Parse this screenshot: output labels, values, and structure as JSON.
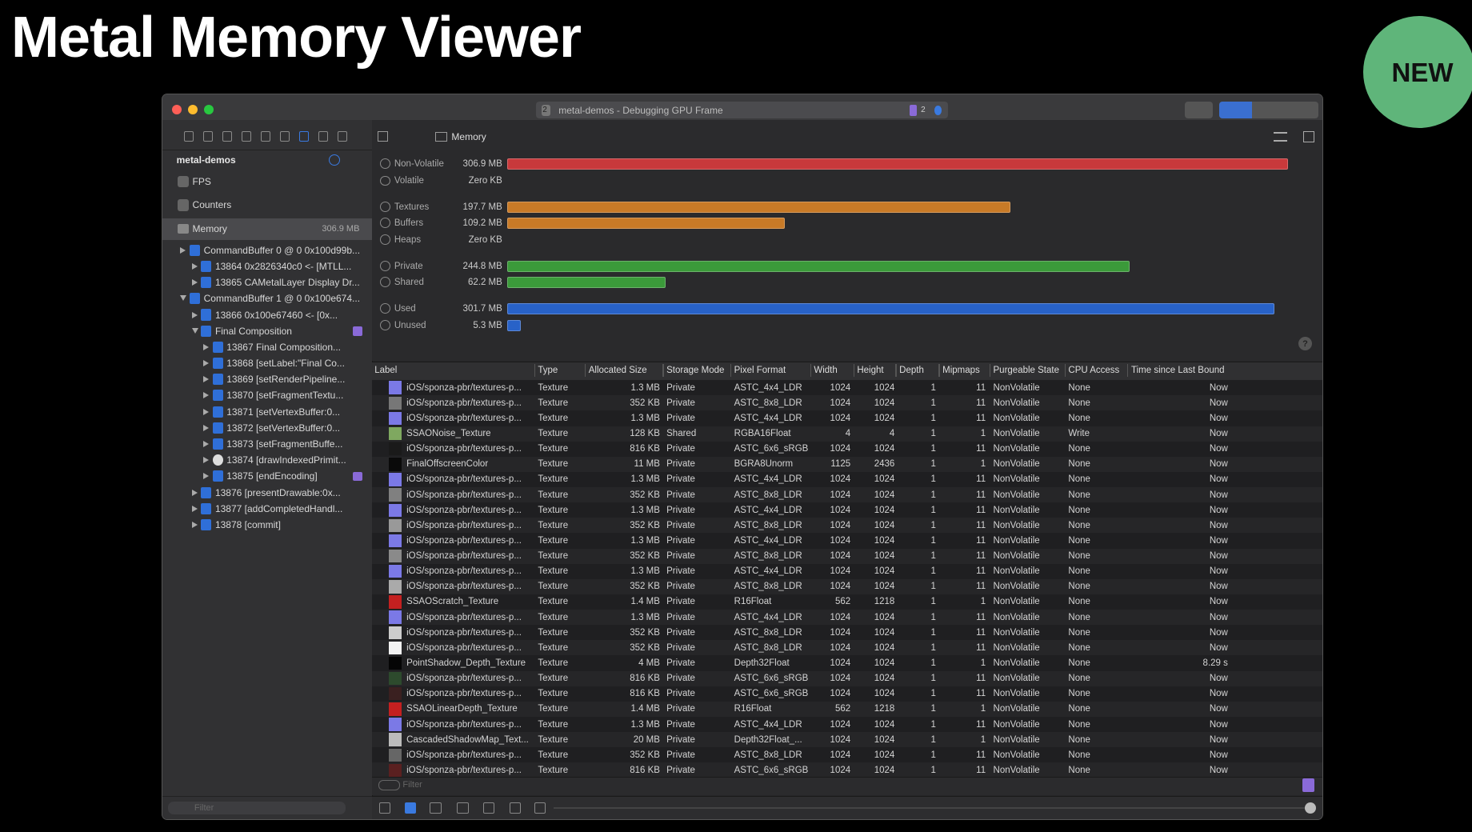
{
  "slide": {
    "title": "Metal Memory Viewer",
    "badge": "NEW"
  },
  "window": {
    "tab_number": "2",
    "title": "metal-demos - Debugging GPU Frame",
    "issue_count": "2",
    "breadcrumb": "Memory"
  },
  "sidebar": {
    "project": "metal-demos",
    "items": [
      "FPS",
      "Counters"
    ],
    "memory": {
      "label": "Memory",
      "size": "306.9 MB"
    },
    "tree": [
      "CommandBuffer 0 @ 0 0x100d99b...",
      "13864 0x2826340c0 <- [MTLL...",
      "13865 CAMetalLayer Display Dr...",
      "CommandBuffer 1 @ 0 0x100e674...",
      "13866 0x100e67460 <- [0x...",
      "Final Composition",
      "13867 Final Composition...",
      "13868 [setLabel:\"Final Co...",
      "13869 [setRenderPipeline...",
      "13870 [setFragmentTextu...",
      "13871 [setVertexBuffer:0...",
      "13872 [setVertexBuffer:0...",
      "13873 [setFragmentBuffe...",
      "13874 [drawIndexedPrimit...",
      "13875 [endEncoding]",
      "13876 [presentDrawable:0x...",
      "13877 [addCompletedHandl...",
      "13878 [commit]"
    ],
    "filter": "Filter"
  },
  "memory_bars": [
    {
      "name": "Non-Volatile",
      "value": 306.9,
      "label": "306.9 MB",
      "color": "#c8393b"
    },
    {
      "name": "Volatile",
      "value": 0,
      "label": "Zero KB",
      "color": "#c8393b"
    },
    {
      "name": "Textures",
      "value": 197.7,
      "label": "197.7 MB",
      "color": "#c87a27"
    },
    {
      "name": "Buffers",
      "value": 109.2,
      "label": "109.2 MB",
      "color": "#c87a27"
    },
    {
      "name": "Heaps",
      "value": 0,
      "label": "Zero KB",
      "color": "#c87a27"
    },
    {
      "name": "Private",
      "value": 244.8,
      "label": "244.8 MB",
      "color": "#3b9a3a"
    },
    {
      "name": "Shared",
      "value": 62.2,
      "label": "62.2 MB",
      "color": "#3b9a3a"
    },
    {
      "name": "Used",
      "value": 301.7,
      "label": "301.7 MB",
      "color": "#2862c8"
    },
    {
      "name": "Unused",
      "value": 5.3,
      "label": "5.3 MB",
      "color": "#2862c8"
    }
  ],
  "help": "?",
  "table": {
    "columns": [
      "Label",
      "Type",
      "Allocated Size",
      "Storage Mode",
      "Pixel Format",
      "Width",
      "Height",
      "Depth",
      "Mipmaps",
      "Purgeable State",
      "CPU Access",
      "Time since Last Bound"
    ],
    "rows": [
      [
        "iOS/sponza-pbr/textures-p...",
        "Texture",
        "1.3 MB",
        "Private",
        "ASTC_4x4_LDR",
        "1024",
        "1024",
        "1",
        "11",
        "NonVolatile",
        "None",
        "Now"
      ],
      [
        "iOS/sponza-pbr/textures-p...",
        "Texture",
        "352 KB",
        "Private",
        "ASTC_8x8_LDR",
        "1024",
        "1024",
        "1",
        "11",
        "NonVolatile",
        "None",
        "Now"
      ],
      [
        "iOS/sponza-pbr/textures-p...",
        "Texture",
        "1.3 MB",
        "Private",
        "ASTC_4x4_LDR",
        "1024",
        "1024",
        "1",
        "11",
        "NonVolatile",
        "None",
        "Now"
      ],
      [
        "SSAONoise_Texture",
        "Texture",
        "128 KB",
        "Shared",
        "RGBA16Float",
        "4",
        "4",
        "1",
        "1",
        "NonVolatile",
        "Write",
        "Now"
      ],
      [
        "iOS/sponza-pbr/textures-p...",
        "Texture",
        "816 KB",
        "Private",
        "ASTC_6x6_sRGB",
        "1024",
        "1024",
        "1",
        "11",
        "NonVolatile",
        "None",
        "Now"
      ],
      [
        "FinalOffscreenColor",
        "Texture",
        "11 MB",
        "Private",
        "BGRA8Unorm",
        "1125",
        "2436",
        "1",
        "1",
        "NonVolatile",
        "None",
        "Now"
      ],
      [
        "iOS/sponza-pbr/textures-p...",
        "Texture",
        "1.3 MB",
        "Private",
        "ASTC_4x4_LDR",
        "1024",
        "1024",
        "1",
        "11",
        "NonVolatile",
        "None",
        "Now"
      ],
      [
        "iOS/sponza-pbr/textures-p...",
        "Texture",
        "352 KB",
        "Private",
        "ASTC_8x8_LDR",
        "1024",
        "1024",
        "1",
        "11",
        "NonVolatile",
        "None",
        "Now"
      ],
      [
        "iOS/sponza-pbr/textures-p...",
        "Texture",
        "1.3 MB",
        "Private",
        "ASTC_4x4_LDR",
        "1024",
        "1024",
        "1",
        "11",
        "NonVolatile",
        "None",
        "Now"
      ],
      [
        "iOS/sponza-pbr/textures-p...",
        "Texture",
        "352 KB",
        "Private",
        "ASTC_8x8_LDR",
        "1024",
        "1024",
        "1",
        "11",
        "NonVolatile",
        "None",
        "Now"
      ],
      [
        "iOS/sponza-pbr/textures-p...",
        "Texture",
        "1.3 MB",
        "Private",
        "ASTC_4x4_LDR",
        "1024",
        "1024",
        "1",
        "11",
        "NonVolatile",
        "None",
        "Now"
      ],
      [
        "iOS/sponza-pbr/textures-p...",
        "Texture",
        "352 KB",
        "Private",
        "ASTC_8x8_LDR",
        "1024",
        "1024",
        "1",
        "11",
        "NonVolatile",
        "None",
        "Now"
      ],
      [
        "iOS/sponza-pbr/textures-p...",
        "Texture",
        "1.3 MB",
        "Private",
        "ASTC_4x4_LDR",
        "1024",
        "1024",
        "1",
        "11",
        "NonVolatile",
        "None",
        "Now"
      ],
      [
        "iOS/sponza-pbr/textures-p...",
        "Texture",
        "352 KB",
        "Private",
        "ASTC_8x8_LDR",
        "1024",
        "1024",
        "1",
        "11",
        "NonVolatile",
        "None",
        "Now"
      ],
      [
        "SSAOScratch_Texture",
        "Texture",
        "1.4 MB",
        "Private",
        "R16Float",
        "562",
        "1218",
        "1",
        "1",
        "NonVolatile",
        "None",
        "Now"
      ],
      [
        "iOS/sponza-pbr/textures-p...",
        "Texture",
        "1.3 MB",
        "Private",
        "ASTC_4x4_LDR",
        "1024",
        "1024",
        "1",
        "11",
        "NonVolatile",
        "None",
        "Now"
      ],
      [
        "iOS/sponza-pbr/textures-p...",
        "Texture",
        "352 KB",
        "Private",
        "ASTC_8x8_LDR",
        "1024",
        "1024",
        "1",
        "11",
        "NonVolatile",
        "None",
        "Now"
      ],
      [
        "iOS/sponza-pbr/textures-p...",
        "Texture",
        "352 KB",
        "Private",
        "ASTC_8x8_LDR",
        "1024",
        "1024",
        "1",
        "11",
        "NonVolatile",
        "None",
        "Now"
      ],
      [
        "PointShadow_Depth_Texture",
        "Texture",
        "4 MB",
        "Private",
        "Depth32Float",
        "1024",
        "1024",
        "1",
        "1",
        "NonVolatile",
        "None",
        "8.29 s"
      ],
      [
        "iOS/sponza-pbr/textures-p...",
        "Texture",
        "816 KB",
        "Private",
        "ASTC_6x6_sRGB",
        "1024",
        "1024",
        "1",
        "11",
        "NonVolatile",
        "None",
        "Now"
      ],
      [
        "iOS/sponza-pbr/textures-p...",
        "Texture",
        "816 KB",
        "Private",
        "ASTC_6x6_sRGB",
        "1024",
        "1024",
        "1",
        "11",
        "NonVolatile",
        "None",
        "Now"
      ],
      [
        "SSAOLinearDepth_Texture",
        "Texture",
        "1.4 MB",
        "Private",
        "R16Float",
        "562",
        "1218",
        "1",
        "1",
        "NonVolatile",
        "None",
        "Now"
      ],
      [
        "iOS/sponza-pbr/textures-p...",
        "Texture",
        "1.3 MB",
        "Private",
        "ASTC_4x4_LDR",
        "1024",
        "1024",
        "1",
        "11",
        "NonVolatile",
        "None",
        "Now"
      ],
      [
        "CascadedShadowMap_Text...",
        "Texture",
        "20 MB",
        "Private",
        "Depth32Float_...",
        "1024",
        "1024",
        "1",
        "1",
        "NonVolatile",
        "None",
        "Now"
      ],
      [
        "iOS/sponza-pbr/textures-p...",
        "Texture",
        "352 KB",
        "Private",
        "ASTC_8x8_LDR",
        "1024",
        "1024",
        "1",
        "11",
        "NonVolatile",
        "None",
        "Now"
      ],
      [
        "iOS/sponza-pbr/textures-p...",
        "Texture",
        "816 KB",
        "Private",
        "ASTC_6x6_sRGB",
        "1024",
        "1024",
        "1",
        "11",
        "NonVolatile",
        "None",
        "Now"
      ]
    ],
    "filter": "Filter"
  }
}
